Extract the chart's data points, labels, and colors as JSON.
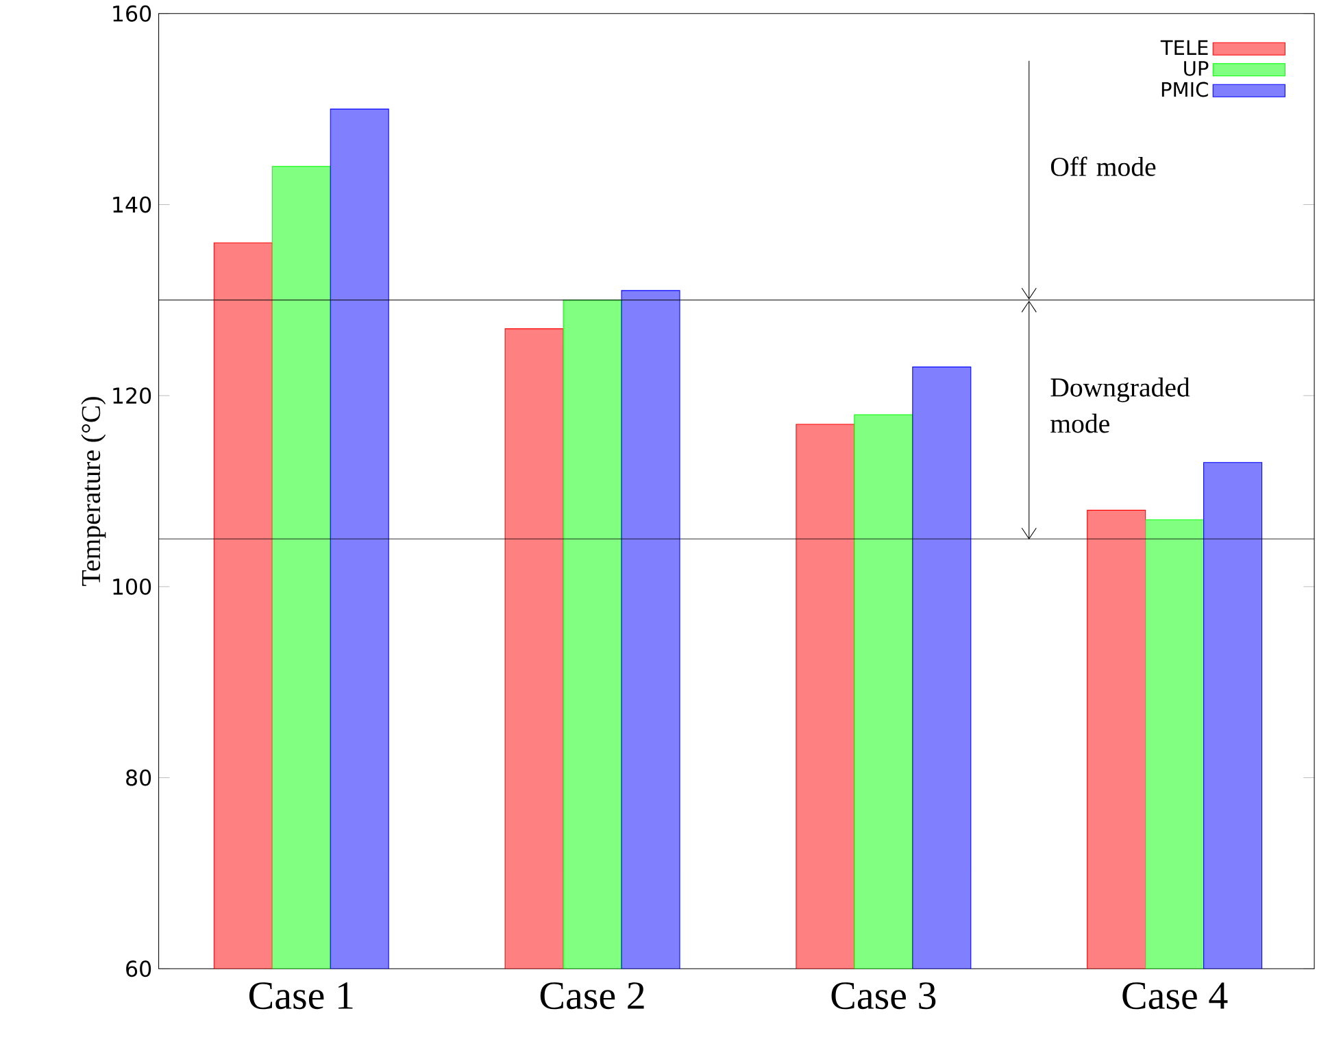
{
  "chart_data": {
    "type": "bar",
    "ylabel": "Temperature (°C)",
    "categories": [
      "Case 1",
      "Case 2",
      "Case 3",
      "Case 4"
    ],
    "series": [
      {
        "name": "TELE",
        "color": "#ff8080",
        "values": [
          136,
          127,
          117,
          108
        ]
      },
      {
        "name": "UP",
        "color": "#80ff80",
        "values": [
          144,
          130,
          118,
          107
        ]
      },
      {
        "name": "PMIC",
        "color": "#8080ff",
        "values": [
          150,
          131,
          123,
          113
        ]
      }
    ],
    "ylim": [
      60,
      160
    ],
    "yticks": [
      60,
      80,
      100,
      120,
      140,
      160
    ],
    "legend": "top right",
    "ref_lines": [
      {
        "axis": "y",
        "value": 130
      },
      {
        "axis": "y",
        "value": 105
      }
    ],
    "annotations": [
      "Off mode",
      "Downgraded mode"
    ]
  }
}
